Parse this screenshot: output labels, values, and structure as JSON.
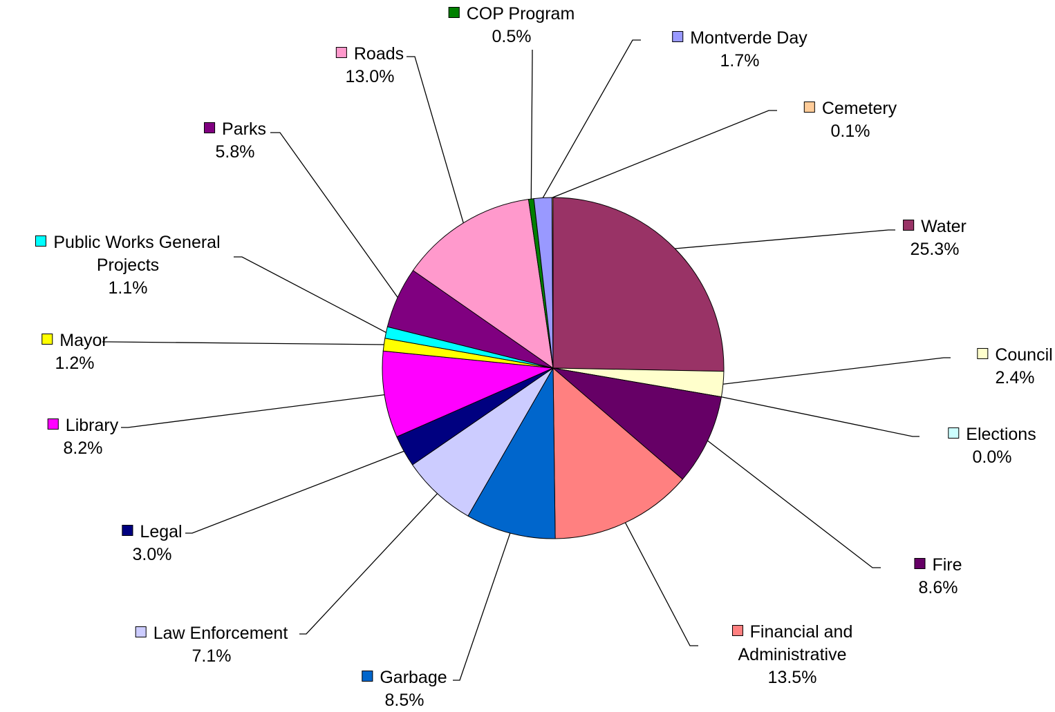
{
  "chart_data": {
    "type": "pie",
    "categories": [
      "Water",
      "Council",
      "Elections",
      "Fire",
      "Financial and Administrative",
      "Garbage",
      "Law Enforcement",
      "Legal",
      "Library",
      "Mayor",
      "Public Works General Projects",
      "Parks",
      "Roads",
      "COP Program",
      "Montverde Day",
      "Cemetery"
    ],
    "values": [
      25.3,
      2.4,
      0.0,
      8.6,
      13.5,
      8.5,
      7.1,
      3.0,
      8.2,
      1.2,
      1.1,
      5.8,
      13.0,
      0.5,
      1.7,
      0.1
    ],
    "value_labels": [
      "25.3%",
      "2.4%",
      "0.0%",
      "8.6%",
      "13.5%",
      "8.5%",
      "7.1%",
      "3.0%",
      "8.2%",
      "1.2%",
      "1.1%",
      "5.8%",
      "13.0%",
      "0.5%",
      "1.7%",
      "0.1%"
    ],
    "colors": [
      "#993366",
      "#FFFFCC",
      "#CCFFFF",
      "#660066",
      "#FF8080",
      "#0066CC",
      "#CCCCFF",
      "#000080",
      "#FF00FF",
      "#FFFF00",
      "#00FFFF",
      "#800080",
      "#FF99CC",
      "#008000",
      "#9999FF",
      "#FFCC99"
    ]
  }
}
